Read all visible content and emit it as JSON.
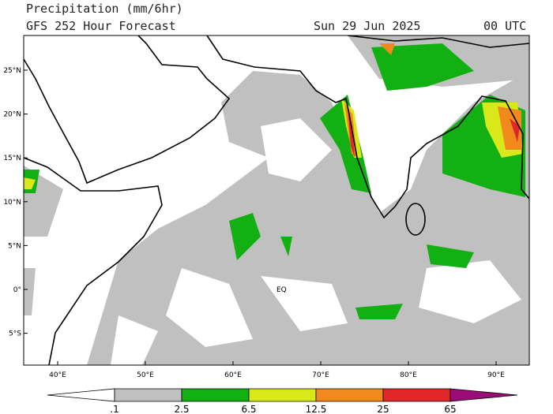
{
  "header": {
    "title": "Precipitation (mm/6hr)",
    "model": "GFS 252 Hour Forecast",
    "date": "Sun 29 Jun 2025",
    "time": "00 UTC"
  },
  "map": {
    "lat_labels": [
      "25°N",
      "20°N",
      "15°N",
      "10°N",
      "5°N",
      "0°",
      "5°S"
    ],
    "lon_labels": [
      "40°E",
      "50°E",
      "60°E",
      "70°E",
      "80°E",
      "90°E"
    ],
    "equator_label": "EQ"
  },
  "colorbar": {
    "labels": [
      ".1",
      "2.5",
      "6.5",
      "12.5",
      "25",
      "65"
    ],
    "colors": [
      "#ffffff",
      "#c0c0c0",
      "#12b012",
      "#d8e81a",
      "#f08a1c",
      "#e02828",
      "#9c0c78"
    ]
  }
}
